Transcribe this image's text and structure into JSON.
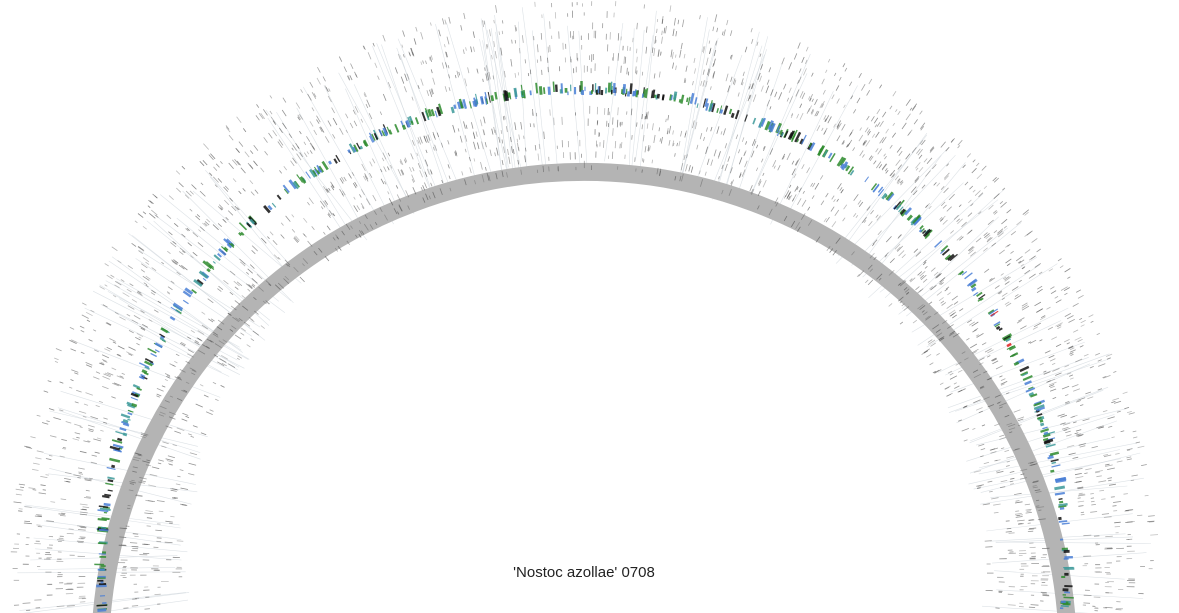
{
  "title": "'Nostoc azollae' 0708",
  "colors": {
    "backbone": "#b4b4b4",
    "feature_dark": "#111111",
    "feature_green": "#2e8b2e",
    "feature_blue": "#4a7fd6",
    "feature_teal": "#3d9a9a",
    "feature_red": "#e02020",
    "tick": "#555555",
    "connector": "#cfd6dc"
  }
}
